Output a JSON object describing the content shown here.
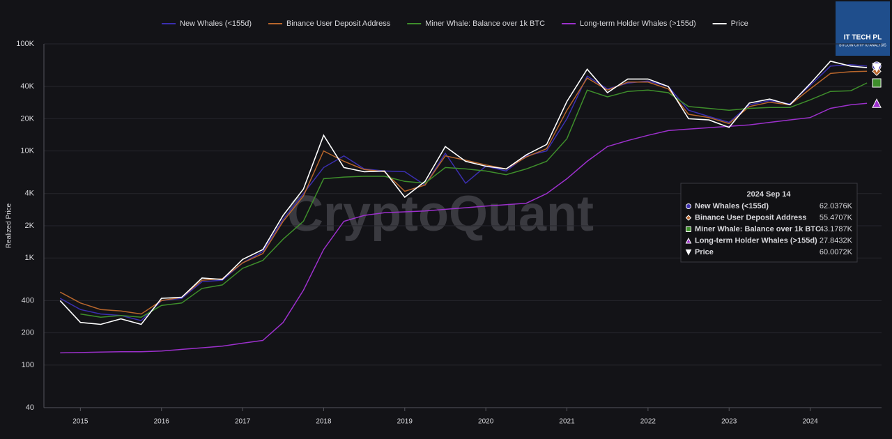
{
  "chart_data": {
    "type": "line",
    "y_label": "Realized Price",
    "log_scale": true,
    "grid": true,
    "watermark": "CryptoQuant",
    "logo": {
      "title": "IT TECH PL",
      "subtitle": "BITCOIN CRYPTO ANALYSIS"
    },
    "x": [
      2014.75,
      2015,
      2015.25,
      2015.5,
      2015.75,
      2016,
      2016.25,
      2016.5,
      2016.75,
      2017,
      2017.25,
      2017.5,
      2017.75,
      2018,
      2018.25,
      2018.5,
      2018.75,
      2019,
      2019.25,
      2019.5,
      2019.75,
      2020,
      2020.25,
      2020.5,
      2020.75,
      2021,
      2021.25,
      2021.5,
      2021.75,
      2022,
      2022.25,
      2022.5,
      2022.75,
      2023,
      2023.25,
      2023.5,
      2023.75,
      2024,
      2024.25,
      2024.5,
      2024.7
    ],
    "xlim": [
      2014.55,
      2024.88
    ],
    "xticks": [
      2015,
      2016,
      2017,
      2018,
      2019,
      2020,
      2021,
      2022,
      2023,
      2024
    ],
    "ylim": [
      40,
      100000
    ],
    "yticks": [
      40,
      100,
      200,
      400,
      {
        "value": 1000,
        "label": "1K"
      },
      {
        "value": 2000,
        "label": "2K"
      },
      {
        "value": 4000,
        "label": "4K"
      },
      {
        "value": 10000,
        "label": "10K"
      },
      {
        "value": 20000,
        "label": "20K"
      },
      {
        "value": 40000,
        "label": "40K"
      },
      {
        "value": 100000,
        "label": "100K"
      }
    ],
    "series": [
      {
        "name": "New Whales (<155d)",
        "color": "#3b2fb0",
        "marker": "circle",
        "values": [
          420,
          330,
          300,
          290,
          260,
          400,
          420,
          600,
          620,
          900,
          1150,
          2300,
          4000,
          7000,
          9000,
          6800,
          6500,
          6400,
          4800,
          9500,
          5000,
          7200,
          6500,
          9000,
          10000,
          20000,
          50000,
          38000,
          43000,
          45000,
          40000,
          24000,
          21000,
          18500,
          27000,
          29500,
          27500,
          41000,
          62000,
          64000,
          62037.6
        ]
      },
      {
        "name": "Binance User Deposit Address",
        "color": "#b8662c",
        "marker": "diamond",
        "values": [
          480,
          380,
          330,
          320,
          300,
          400,
          430,
          620,
          640,
          900,
          1100,
          2200,
          3800,
          10000,
          8000,
          6700,
          6400,
          4200,
          4800,
          9000,
          8200,
          7400,
          6800,
          8800,
          10500,
          24000,
          48000,
          37000,
          44000,
          44000,
          38000,
          22000,
          20500,
          18000,
          26000,
          28500,
          27000,
          38000,
          53000,
          55000,
          55470.7
        ]
      },
      {
        "name": "Miner Whale: Balance over 1k BTC",
        "color": "#3e8e2b",
        "marker": "square",
        "values": [
          null,
          300,
          280,
          290,
          280,
          360,
          380,
          520,
          560,
          800,
          950,
          1500,
          2200,
          5500,
          5700,
          5800,
          5800,
          5200,
          5000,
          7000,
          6800,
          6500,
          6000,
          6800,
          8000,
          13000,
          37000,
          32000,
          36000,
          37000,
          35000,
          26000,
          25000,
          24000,
          25000,
          25500,
          25500,
          30000,
          36000,
          36500,
          43178.7
        ]
      },
      {
        "name": "Long-term Holder Whales (>155d)",
        "color": "#9c30cc",
        "marker": "triangle",
        "values": [
          130,
          131,
          132,
          133,
          133,
          135,
          140,
          145,
          150,
          160,
          170,
          250,
          500,
          1200,
          2200,
          2500,
          2650,
          2700,
          2750,
          2850,
          2950,
          3050,
          3150,
          3250,
          4000,
          5500,
          8000,
          11000,
          12500,
          14000,
          15500,
          16000,
          16500,
          17000,
          17500,
          18500,
          19500,
          20500,
          25000,
          27000,
          27843.2
        ]
      },
      {
        "name": "Price",
        "color": "#ffffff",
        "marker": "down-triangle",
        "values": [
          400,
          250,
          240,
          270,
          240,
          420,
          430,
          650,
          630,
          970,
          1200,
          2500,
          4400,
          14000,
          7000,
          6400,
          6500,
          3700,
          5200,
          11000,
          8000,
          7200,
          6800,
          9200,
          11500,
          29000,
          58000,
          35000,
          47000,
          47000,
          40000,
          20000,
          19500,
          16600,
          28000,
          30500,
          27000,
          42500,
          69000,
          62000,
          60007.2
        ]
      }
    ],
    "tooltip": {
      "title": "2024 Sep 14",
      "values": [
        {
          "value": 62037.6,
          "label": "62.0376K"
        },
        {
          "value": 55470.7,
          "label": "55.4707K"
        },
        {
          "value": 43178.7,
          "label": "43.1787K"
        },
        {
          "value": 27843.2,
          "label": "27.8432K"
        },
        {
          "value": 60007.2,
          "label": "60.0072K"
        }
      ]
    }
  }
}
